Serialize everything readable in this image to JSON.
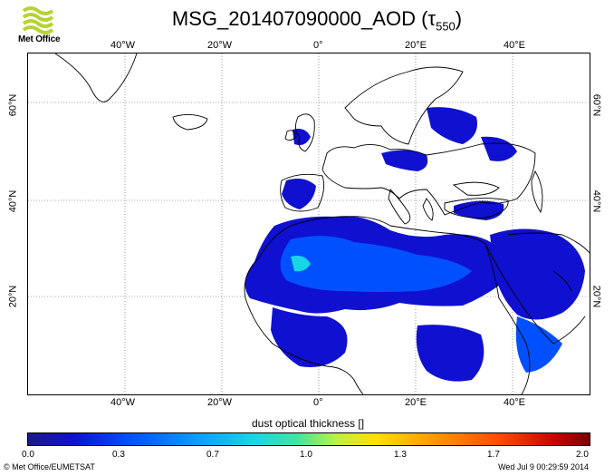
{
  "title": "MSG_201407090000_AOD (τ",
  "title_sub": "550",
  "title_close": ")",
  "logo_text": "Met Office",
  "lon_labels": [
    "40°W",
    "20°W",
    "0°",
    "20°E",
    "40°E"
  ],
  "lat_labels": [
    "60°N",
    "40°N",
    "20°N"
  ],
  "colorbar_label": "dust optical thickness []",
  "colorbar_ticks": [
    "0.0",
    "0.3",
    "0.7",
    "1.0",
    "1.3",
    "1.7",
    "2.0"
  ],
  "credit": "© Met Office/EUMETSAT",
  "timestamp": "Wed Jul  9 00:29:59 2014",
  "colors": {
    "aod_low": "#1010d0",
    "aod_mid": "#0050ff",
    "aod_high": "#16d6e6",
    "land_outline": "#000000"
  }
}
